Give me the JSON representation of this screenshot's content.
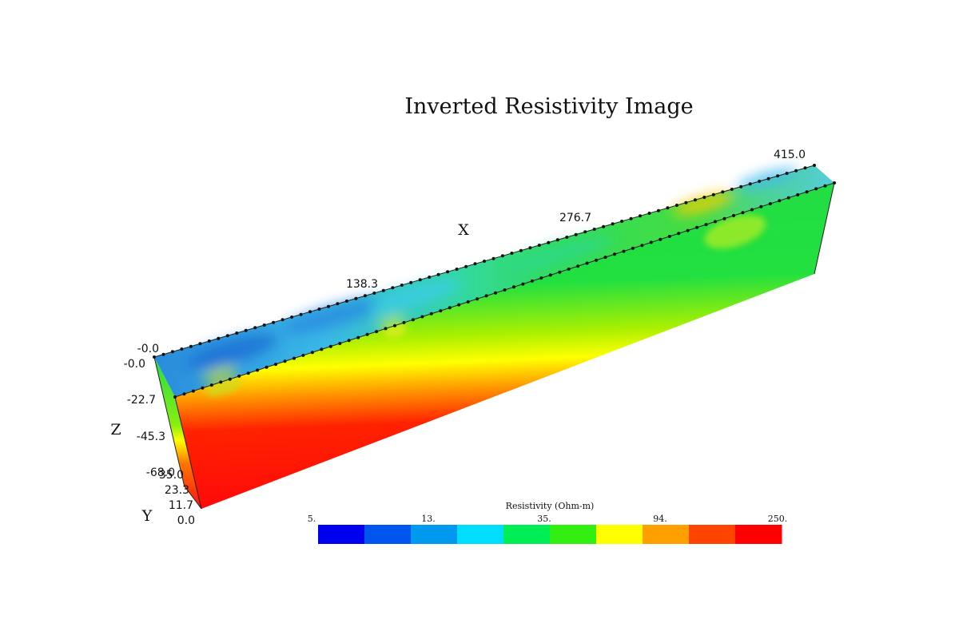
{
  "title": "Inverted Resistivity Image",
  "axes": {
    "x": {
      "letter": "X",
      "ticks": [
        "-0.0",
        "138.3",
        "276.7",
        "415.0"
      ]
    },
    "z": {
      "letter": "Z",
      "ticks": [
        "-0.0",
        "-22.7",
        "-45.3",
        "-68.0"
      ]
    },
    "y": {
      "letter": "Y",
      "ticks": [
        "35.0",
        "23.3",
        "11.7",
        "0.0"
      ]
    }
  },
  "colorbar": {
    "label": "Resistivity (Ohm-m)",
    "tick_labels": [
      "5.",
      "13.",
      "35.",
      "94.",
      "250."
    ],
    "colors": [
      "#0000ee",
      "#0055ee",
      "#0099ee",
      "#00ddff",
      "#00ee55",
      "#33ee11",
      "#ffff00",
      "#ffa000",
      "#ff4400",
      "#ff0000"
    ]
  },
  "colors": {
    "low": "#1a6fd6",
    "mid_low": "#3ad0e0",
    "mid": "#20e040",
    "mid_high": "#ffff00",
    "high": "#ff1000"
  }
}
